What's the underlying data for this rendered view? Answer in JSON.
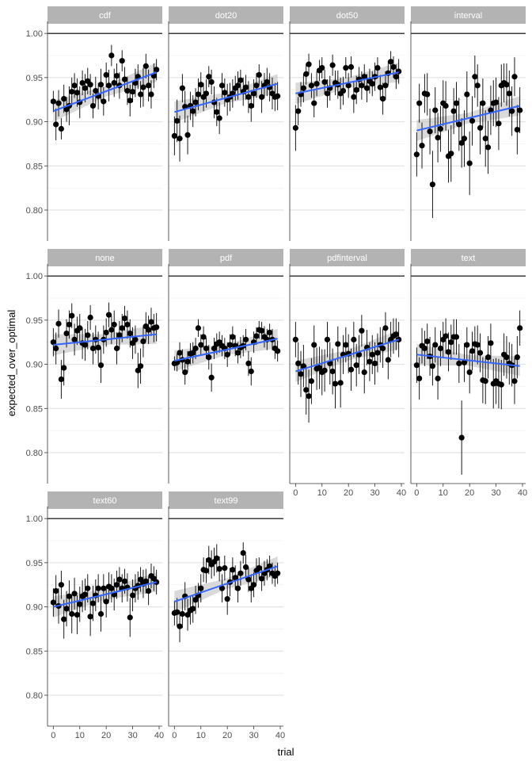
{
  "chart_data": {
    "type": "scatter",
    "title": "",
    "xlabel": "trial",
    "ylabel": "expected_over_optimal",
    "xlim": [
      -1,
      40
    ],
    "ylim": [
      0.765,
      1.01
    ],
    "x_ticks": [
      0,
      10,
      20,
      30,
      40
    ],
    "y_ticks": [
      0.8,
      0.85,
      0.9,
      0.95,
      1.0
    ],
    "reference_line": 1.0,
    "grid": true,
    "colors": {
      "points": "#000000",
      "errorbars": "#000000",
      "trend": "#3366ff",
      "ribbon": "#bbbbbb",
      "strip": "#b3b3b3",
      "grid": "#dddddd"
    },
    "panels": [
      {
        "name": "cdf",
        "trend": [
          0.912,
          0.956
        ],
        "y": [
          0.923,
          0.897,
          0.921,
          0.892,
          0.926,
          0.914,
          0.918,
          0.934,
          0.941,
          0.933,
          0.922,
          0.944,
          0.938,
          0.946,
          0.942,
          0.918,
          0.935,
          0.929,
          0.942,
          0.923,
          0.953,
          0.941,
          0.975,
          0.944,
          0.952,
          0.941,
          0.969,
          0.948,
          0.935,
          0.924,
          0.934,
          0.944,
          0.951,
          0.931,
          0.939,
          0.963,
          0.941,
          0.931,
          0.952,
          0.959
        ],
        "err": [
          0.012,
          0.018,
          0.015,
          0.012,
          0.016,
          0.014,
          0.022,
          0.016,
          0.014,
          0.016,
          0.018,
          0.014,
          0.016,
          0.015,
          0.012,
          0.014,
          0.016,
          0.015,
          0.018,
          0.016,
          0.014,
          0.018,
          0.012,
          0.016,
          0.014,
          0.015,
          0.012,
          0.014,
          0.016,
          0.018,
          0.012,
          0.016,
          0.014,
          0.015,
          0.022,
          0.014,
          0.018,
          0.016,
          0.014,
          0.012
        ]
      },
      {
        "name": "dot20",
        "trend": [
          0.911,
          0.943
        ],
        "y": [
          0.884,
          0.901,
          0.881,
          0.938,
          0.917,
          0.885,
          0.918,
          0.912,
          0.922,
          0.931,
          0.942,
          0.928,
          0.932,
          0.951,
          0.945,
          0.922,
          0.911,
          0.904,
          0.941,
          0.933,
          0.925,
          0.928,
          0.932,
          0.938,
          0.941,
          0.947,
          0.934,
          0.939,
          0.928,
          0.918,
          0.932,
          0.941,
          0.953,
          0.928,
          0.941,
          0.945,
          0.939,
          0.932,
          0.928,
          0.929
        ],
        "err": [
          0.022,
          0.024,
          0.026,
          0.016,
          0.018,
          0.022,
          0.016,
          0.018,
          0.016,
          0.018,
          0.014,
          0.016,
          0.016,
          0.012,
          0.014,
          0.018,
          0.016,
          0.018,
          0.014,
          0.016,
          0.018,
          0.016,
          0.016,
          0.014,
          0.016,
          0.012,
          0.016,
          0.014,
          0.018,
          0.018,
          0.016,
          0.014,
          0.012,
          0.018,
          0.014,
          0.016,
          0.016,
          0.018,
          0.016,
          0.016
        ]
      },
      {
        "name": "dot50",
        "trend": [
          0.932,
          0.956
        ],
        "y": [
          0.893,
          0.912,
          0.931,
          0.938,
          0.954,
          0.965,
          0.941,
          0.921,
          0.943,
          0.958,
          0.961,
          0.945,
          0.932,
          0.938,
          0.964,
          0.944,
          0.942,
          0.932,
          0.935,
          0.961,
          0.941,
          0.962,
          0.928,
          0.936,
          0.948,
          0.941,
          0.951,
          0.938,
          0.946,
          0.943,
          0.951,
          0.961,
          0.939,
          0.926,
          0.941,
          0.955,
          0.968,
          0.962,
          0.951,
          0.957
        ],
        "err": [
          0.026,
          0.016,
          0.014,
          0.016,
          0.012,
          0.012,
          0.014,
          0.016,
          0.014,
          0.012,
          0.012,
          0.014,
          0.016,
          0.014,
          0.012,
          0.014,
          0.016,
          0.018,
          0.016,
          0.012,
          0.014,
          0.012,
          0.018,
          0.016,
          0.014,
          0.016,
          0.014,
          0.016,
          0.014,
          0.014,
          0.016,
          0.012,
          0.014,
          0.018,
          0.016,
          0.014,
          0.012,
          0.012,
          0.014,
          0.014
        ]
      },
      {
        "name": "interval",
        "trend": [
          0.89,
          0.918
        ],
        "y": [
          0.863,
          0.921,
          0.873,
          0.932,
          0.931,
          0.889,
          0.829,
          0.913,
          0.882,
          0.892,
          0.921,
          0.918,
          0.861,
          0.864,
          0.912,
          0.921,
          0.897,
          0.876,
          0.881,
          0.931,
          0.853,
          0.901,
          0.951,
          0.941,
          0.893,
          0.921,
          0.881,
          0.871,
          0.913,
          0.921,
          0.922,
          0.898,
          0.941,
          0.944,
          0.942,
          0.932,
          0.912,
          0.951,
          0.891,
          0.913
        ],
        "err": [
          0.025,
          0.022,
          0.026,
          0.022,
          0.024,
          0.026,
          0.038,
          0.026,
          0.028,
          0.026,
          0.026,
          0.028,
          0.03,
          0.032,
          0.026,
          0.024,
          0.03,
          0.028,
          0.032,
          0.026,
          0.036,
          0.028,
          0.024,
          0.024,
          0.03,
          0.028,
          0.032,
          0.03,
          0.028,
          0.026,
          0.028,
          0.03,
          0.024,
          0.022,
          0.024,
          0.026,
          0.028,
          0.022,
          0.028,
          0.026
        ]
      },
      {
        "name": "none",
        "trend": [
          0.922,
          0.934
        ],
        "y": [
          0.925,
          0.918,
          0.946,
          0.883,
          0.896,
          0.935,
          0.945,
          0.955,
          0.928,
          0.938,
          0.941,
          0.924,
          0.922,
          0.933,
          0.953,
          0.918,
          0.928,
          0.919,
          0.899,
          0.928,
          0.936,
          0.956,
          0.939,
          0.945,
          0.918,
          0.933,
          0.941,
          0.952,
          0.945,
          0.935,
          0.924,
          0.928,
          0.893,
          0.898,
          0.926,
          0.943,
          0.939,
          0.948,
          0.941,
          0.942
        ],
        "err": [
          0.016,
          0.018,
          0.016,
          0.022,
          0.02,
          0.016,
          0.016,
          0.014,
          0.018,
          0.016,
          0.016,
          0.018,
          0.018,
          0.016,
          0.014,
          0.018,
          0.016,
          0.018,
          0.02,
          0.016,
          0.016,
          0.014,
          0.016,
          0.016,
          0.018,
          0.016,
          0.016,
          0.014,
          0.016,
          0.016,
          0.018,
          0.016,
          0.02,
          0.02,
          0.018,
          0.016,
          0.016,
          0.016,
          0.016,
          0.016
        ]
      },
      {
        "name": "pdf",
        "trend": [
          0.904,
          0.929
        ],
        "y": [
          0.901,
          0.902,
          0.913,
          0.905,
          0.891,
          0.903,
          0.912,
          0.913,
          0.918,
          0.941,
          0.922,
          0.931,
          0.918,
          0.908,
          0.885,
          0.918,
          0.923,
          0.925,
          0.921,
          0.918,
          0.911,
          0.922,
          0.931,
          0.921,
          0.913,
          0.919,
          0.921,
          0.928,
          0.901,
          0.892,
          0.925,
          0.932,
          0.939,
          0.938,
          0.931,
          0.928,
          0.936,
          0.928,
          0.918,
          0.915
        ],
        "err": [
          0.008,
          0.01,
          0.012,
          0.012,
          0.014,
          0.012,
          0.012,
          0.012,
          0.012,
          0.01,
          0.012,
          0.012,
          0.012,
          0.014,
          0.016,
          0.012,
          0.012,
          0.012,
          0.012,
          0.012,
          0.014,
          0.012,
          0.012,
          0.012,
          0.012,
          0.012,
          0.012,
          0.012,
          0.014,
          0.016,
          0.012,
          0.01,
          0.01,
          0.01,
          0.012,
          0.012,
          0.01,
          0.012,
          0.012,
          0.012
        ]
      },
      {
        "name": "pdfinterval",
        "trend": [
          0.892,
          0.928
        ],
        "y": [
          0.928,
          0.901,
          0.889,
          0.898,
          0.871,
          0.864,
          0.881,
          0.922,
          0.895,
          0.896,
          0.891,
          0.893,
          0.928,
          0.901,
          0.892,
          0.878,
          0.923,
          0.879,
          0.911,
          0.922,
          0.912,
          0.894,
          0.928,
          0.899,
          0.911,
          0.938,
          0.891,
          0.919,
          0.903,
          0.911,
          0.901,
          0.913,
          0.922,
          0.918,
          0.941,
          0.905,
          0.928,
          0.932,
          0.934,
          0.928
        ],
        "err": [
          0.02,
          0.024,
          0.026,
          0.024,
          0.028,
          0.03,
          0.026,
          0.022,
          0.024,
          0.024,
          0.026,
          0.024,
          0.02,
          0.024,
          0.026,
          0.028,
          0.02,
          0.028,
          0.022,
          0.02,
          0.022,
          0.024,
          0.02,
          0.024,
          0.022,
          0.018,
          0.024,
          0.02,
          0.022,
          0.022,
          0.024,
          0.022,
          0.02,
          0.022,
          0.018,
          0.022,
          0.02,
          0.02,
          0.018,
          0.02
        ]
      },
      {
        "name": "text",
        "trend": [
          0.911,
          0.898
        ],
        "y": [
          0.899,
          0.884,
          0.921,
          0.918,
          0.926,
          0.909,
          0.898,
          0.922,
          0.884,
          0.918,
          0.928,
          0.932,
          0.914,
          0.925,
          0.931,
          0.931,
          0.901,
          0.817,
          0.902,
          0.922,
          0.891,
          0.915,
          0.923,
          0.922,
          0.913,
          0.882,
          0.881,
          0.908,
          0.924,
          0.878,
          0.881,
          0.878,
          0.877,
          0.911,
          0.908,
          0.901,
          0.899,
          0.881,
          0.908,
          0.941
        ],
        "err": [
          0.02,
          0.024,
          0.02,
          0.02,
          0.02,
          0.022,
          0.022,
          0.02,
          0.024,
          0.02,
          0.02,
          0.02,
          0.022,
          0.02,
          0.02,
          0.02,
          0.022,
          0.042,
          0.022,
          0.02,
          0.024,
          0.022,
          0.02,
          0.022,
          0.022,
          0.026,
          0.026,
          0.024,
          0.022,
          0.028,
          0.026,
          0.028,
          0.028,
          0.024,
          0.024,
          0.024,
          0.024,
          0.026,
          0.024,
          0.02
        ]
      },
      {
        "name": "text60",
        "trend": [
          0.9,
          0.928
        ],
        "y": [
          0.905,
          0.918,
          0.901,
          0.925,
          0.886,
          0.898,
          0.912,
          0.892,
          0.915,
          0.891,
          0.903,
          0.912,
          0.914,
          0.921,
          0.889,
          0.904,
          0.913,
          0.921,
          0.892,
          0.921,
          0.906,
          0.923,
          0.921,
          0.914,
          0.925,
          0.931,
          0.921,
          0.929,
          0.922,
          0.888,
          0.913,
          0.921,
          0.924,
          0.931,
          0.926,
          0.929,
          0.918,
          0.935,
          0.932,
          0.928
        ],
        "err": [
          0.016,
          0.018,
          0.02,
          0.016,
          0.022,
          0.02,
          0.018,
          0.022,
          0.018,
          0.022,
          0.02,
          0.018,
          0.018,
          0.016,
          0.022,
          0.02,
          0.018,
          0.016,
          0.02,
          0.016,
          0.018,
          0.016,
          0.016,
          0.018,
          0.016,
          0.014,
          0.016,
          0.014,
          0.016,
          0.022,
          0.018,
          0.016,
          0.016,
          0.014,
          0.016,
          0.014,
          0.016,
          0.014,
          0.014,
          0.014
        ]
      },
      {
        "name": "text99",
        "trend": [
          0.906,
          0.946
        ],
        "y": [
          0.893,
          0.894,
          0.878,
          0.892,
          0.912,
          0.891,
          0.896,
          0.898,
          0.908,
          0.913,
          0.921,
          0.942,
          0.941,
          0.953,
          0.948,
          0.951,
          0.955,
          0.943,
          0.921,
          0.944,
          0.909,
          0.928,
          0.942,
          0.933,
          0.921,
          0.938,
          0.961,
          0.945,
          0.931,
          0.921,
          0.925,
          0.941,
          0.944,
          0.932,
          0.938,
          0.942,
          0.946,
          0.938,
          0.935,
          0.938
        ],
        "err": [
          0.014,
          0.016,
          0.018,
          0.016,
          0.016,
          0.018,
          0.016,
          0.016,
          0.016,
          0.014,
          0.016,
          0.014,
          0.014,
          0.016,
          0.016,
          0.016,
          0.016,
          0.014,
          0.016,
          0.014,
          0.018,
          0.016,
          0.014,
          0.014,
          0.016,
          0.014,
          0.012,
          0.014,
          0.014,
          0.016,
          0.014,
          0.014,
          0.012,
          0.014,
          0.014,
          0.012,
          0.012,
          0.012,
          0.012,
          0.012
        ]
      }
    ]
  }
}
